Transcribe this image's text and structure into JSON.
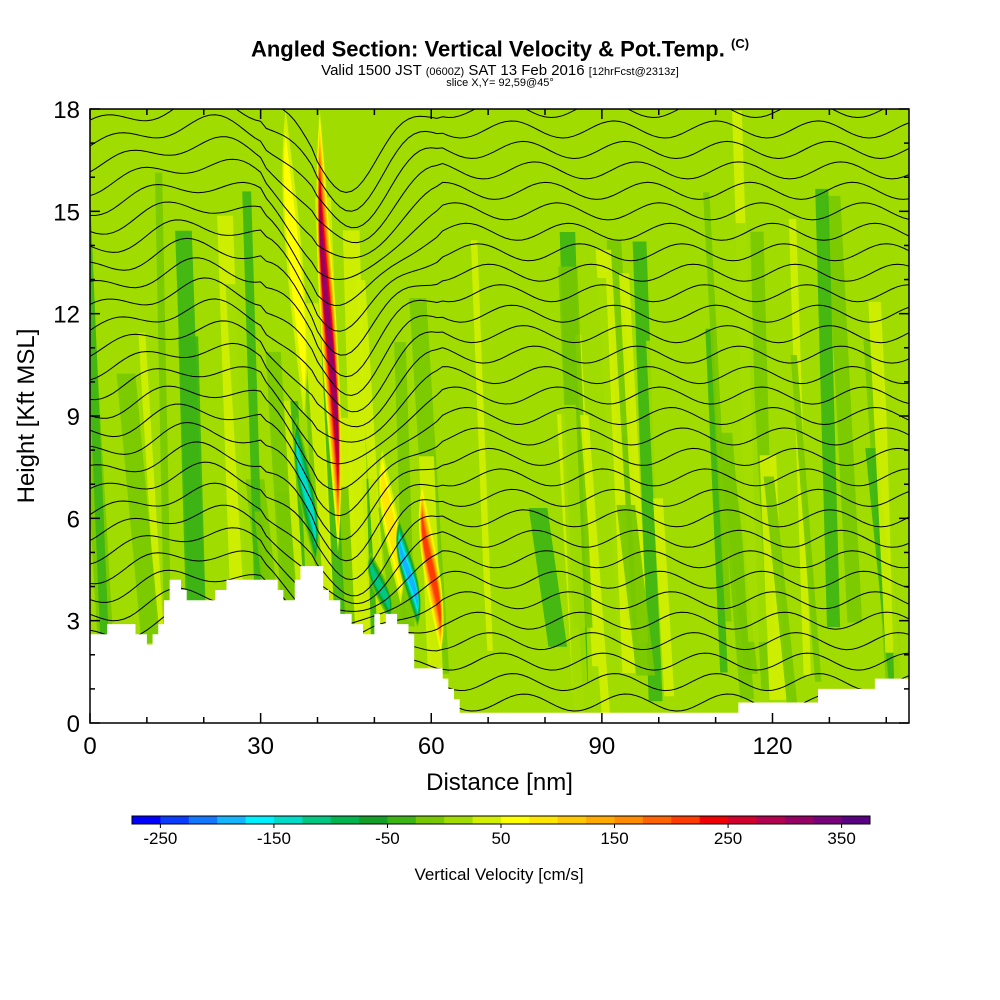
{
  "header": {
    "title": "Angled Section: Vertical Velocity & Pot.Temp.",
    "title_unit": "(C)",
    "valid_prefix": "Valid 1500 JST",
    "valid_zulu": "(0600Z)",
    "valid_date": "SAT 13 Feb 2016",
    "forecast_info": "[12hrFcst@2313z]",
    "slice_info": "slice X,Y= 92,59@45°"
  },
  "chart_data": {
    "type": "heatmap",
    "xlabel": "Distance [nm]",
    "ylabel": "Height [Kft MSL]",
    "xlim": [
      0,
      144
    ],
    "ylim": [
      0,
      18
    ],
    "x_ticks": [
      0,
      30,
      60,
      90,
      120
    ],
    "y_ticks": [
      0,
      3,
      6,
      9,
      12,
      15,
      18
    ],
    "colorbar": {
      "title": "Vertical Velocity [cm/s]",
      "min": -275,
      "max": 375,
      "step": 25,
      "tick_values": [
        -250,
        -150,
        -50,
        50,
        150,
        250,
        350
      ],
      "tick_labels": [
        "-250",
        "-150",
        "-50",
        "50",
        "150",
        "250",
        "350"
      ],
      "colors": [
        "#0000ff",
        "#0a3cff",
        "#1478ff",
        "#14b4ff",
        "#00f0ff",
        "#00dcc8",
        "#00c882",
        "#00b450",
        "#14a028",
        "#3cb414",
        "#78c800",
        "#a0dc00",
        "#d2f000",
        "#ffff00",
        "#ffe600",
        "#ffc800",
        "#ffaa00",
        "#ff8c00",
        "#ff6400",
        "#ff3c00",
        "#f00000",
        "#d2002d",
        "#b40050",
        "#960064",
        "#780078",
        "#5a0082"
      ]
    },
    "terrain_kft": [
      [
        0,
        2.6
      ],
      [
        3,
        2.6
      ],
      [
        3,
        2.9
      ],
      [
        8,
        2.9
      ],
      [
        8,
        2.6
      ],
      [
        10,
        2.6
      ],
      [
        10,
        2.3
      ],
      [
        11,
        2.3
      ],
      [
        11,
        2.6
      ],
      [
        12,
        2.6
      ],
      [
        12,
        2.9
      ],
      [
        13,
        2.9
      ],
      [
        13,
        3.6
      ],
      [
        14,
        3.6
      ],
      [
        14,
        4.2
      ],
      [
        16,
        4.2
      ],
      [
        16,
        3.9
      ],
      [
        17,
        3.9
      ],
      [
        17,
        3.6
      ],
      [
        22,
        3.6
      ],
      [
        22,
        3.9
      ],
      [
        24,
        3.9
      ],
      [
        24,
        4.2
      ],
      [
        33,
        4.2
      ],
      [
        33,
        3.9
      ],
      [
        34,
        3.9
      ],
      [
        34,
        3.6
      ],
      [
        36,
        3.6
      ],
      [
        36,
        4.2
      ],
      [
        37,
        4.2
      ],
      [
        37,
        4.6
      ],
      [
        41,
        4.6
      ],
      [
        41,
        3.9
      ],
      [
        42,
        3.9
      ],
      [
        42,
        3.6
      ],
      [
        44,
        3.6
      ],
      [
        44,
        3.2
      ],
      [
        46,
        3.2
      ],
      [
        46,
        2.9
      ],
      [
        48,
        2.9
      ],
      [
        48,
        2.6
      ],
      [
        50,
        2.6
      ],
      [
        50,
        3.2
      ],
      [
        51,
        3.2
      ],
      [
        51,
        2.9
      ],
      [
        52,
        2.9
      ],
      [
        52,
        3.2
      ],
      [
        54,
        3.2
      ],
      [
        54,
        2.9
      ],
      [
        56,
        2.9
      ],
      [
        56,
        2.6
      ],
      [
        57,
        2.6
      ],
      [
        57,
        1.6
      ],
      [
        62,
        1.6
      ],
      [
        62,
        1.3
      ],
      [
        63,
        1.3
      ],
      [
        63,
        1.0
      ],
      [
        64,
        1.0
      ],
      [
        64,
        0.7
      ],
      [
        65,
        0.7
      ],
      [
        65,
        0.3
      ],
      [
        114,
        0.3
      ],
      [
        114,
        0.6
      ],
      [
        128,
        0.6
      ],
      [
        128,
        1.0
      ],
      [
        138,
        1.0
      ],
      [
        138,
        1.3
      ],
      [
        144,
        1.3
      ]
    ],
    "updraft_maxima": [
      {
        "x": 42,
        "z_top": 18,
        "z_bottom": 5,
        "w": 300
      },
      {
        "x": 60,
        "z_top": 7,
        "z_bottom": 2,
        "w": 200
      },
      {
        "x": 53,
        "z_top": 8,
        "z_bottom": 3.5,
        "w": 80
      },
      {
        "x": 36,
        "z_top": 18,
        "z_bottom": 9,
        "w": 60
      }
    ],
    "downdraft_minima": [
      {
        "x": 38,
        "z_top": 9,
        "z_bottom": 4.6,
        "w": -150
      },
      {
        "x": 56,
        "z_top": 6,
        "z_bottom": 2.8,
        "w": -220
      },
      {
        "x": 51,
        "z_top": 5,
        "z_bottom": 3,
        "w": -130
      }
    ],
    "theta_levels_count": 30
  }
}
